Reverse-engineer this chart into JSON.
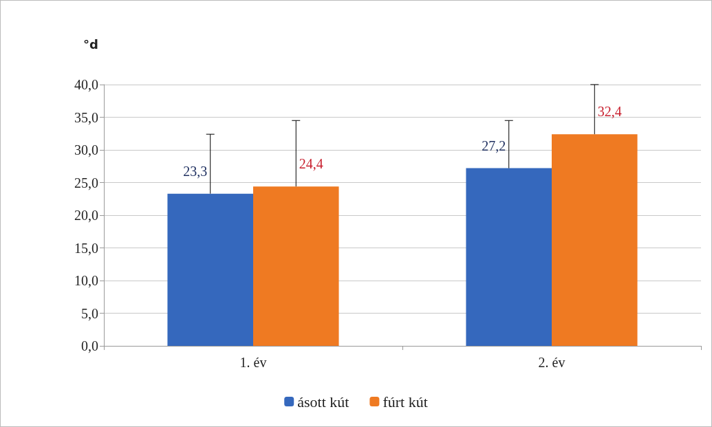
{
  "chart_data": {
    "type": "bar",
    "ylabel": "°d",
    "categories": [
      "1. év",
      "2. év"
    ],
    "series": [
      {
        "name": "ásott kút",
        "color": "#3568bd",
        "values": [
          23.3,
          27.2
        ],
        "value_labels": [
          "23,3",
          "27,2"
        ],
        "errors": [
          [
            23.3,
            32.4
          ],
          [
            27.2,
            34.5
          ]
        ]
      },
      {
        "name": "fúrt kút",
        "color": "#ef7a22",
        "values": [
          24.4,
          32.4
        ],
        "value_labels": [
          "24,4",
          "32,4"
        ],
        "errors": [
          [
            24.4,
            34.5
          ],
          [
            32.4,
            40.0
          ]
        ]
      }
    ],
    "ylim": [
      0,
      40
    ],
    "yticks": [
      {
        "value": 0,
        "label": "0,0"
      },
      {
        "value": 5,
        "label": "5,0"
      },
      {
        "value": 10,
        "label": "10,0"
      },
      {
        "value": 15,
        "label": "15,0"
      },
      {
        "value": 20,
        "label": "20,0"
      },
      {
        "value": 25,
        "label": "25,0"
      },
      {
        "value": 30,
        "label": "30,0"
      },
      {
        "value": 35,
        "label": "35,0"
      },
      {
        "value": 40,
        "label": "40,0"
      }
    ],
    "grid": "y",
    "legend": "bottom"
  }
}
